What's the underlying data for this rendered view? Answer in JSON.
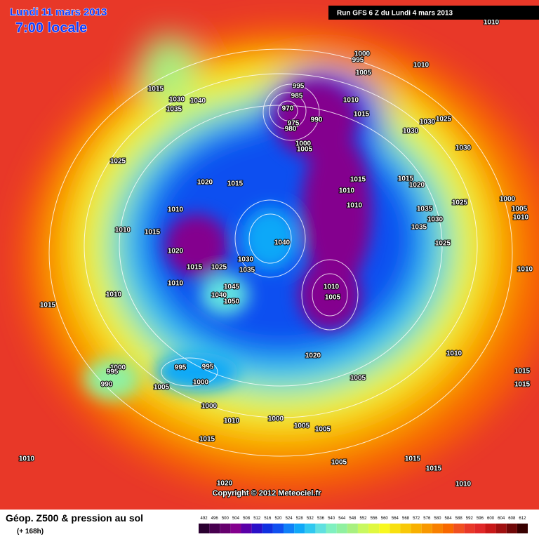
{
  "header": {
    "date": "Lundi 11 mars 2013",
    "time": "7:00 locale",
    "run": "Run GFS 6 Z du Lundi 4 mars 2013",
    "copyright": "Copyright © 2012 Meteociel.fr"
  },
  "map": {
    "isobar_labels": [
      "1010",
      "1000",
      "995",
      "1005",
      "1010",
      "1015",
      "1030",
      "1040",
      "1035",
      "995",
      "985",
      "970",
      "975",
      "980",
      "990",
      "1010",
      "1015",
      "1000",
      "1005",
      "1030",
      "1030",
      "1025",
      "1030",
      "1025",
      "1020",
      "1015",
      "1015",
      "1015",
      "1020",
      "1010",
      "1010",
      "1025",
      "1000",
      "1005",
      "1010",
      "1035",
      "1030",
      "1035",
      "1010",
      "1010",
      "1015",
      "1025",
      "1040",
      "1020",
      "1030",
      "1015",
      "1025",
      "1035",
      "1010",
      "1010",
      "1045",
      "1010",
      "1005",
      "1010",
      "1040",
      "1050",
      "1015",
      "1020",
      "1010",
      "1015",
      "1000",
      "995",
      "995",
      "995",
      "990",
      "1005",
      "1000",
      "1005",
      "1015",
      "1000",
      "1010",
      "1000",
      "1005",
      "1015",
      "1005",
      "1010",
      "1015",
      "1015",
      "1005",
      "1010",
      "1020"
    ]
  },
  "legend": {
    "title": "Géop. Z500 & pression au sol",
    "subtitle": "(+ 168h)",
    "ticks": [
      492,
      496,
      500,
      504,
      508,
      512,
      516,
      520,
      524,
      528,
      532,
      536,
      540,
      544,
      548,
      552,
      556,
      560,
      564,
      568,
      572,
      576,
      580,
      584,
      588,
      592,
      596,
      600,
      604,
      608,
      612
    ],
    "colors": [
      "#2a0030",
      "#48004f",
      "#66006e",
      "#84008e",
      "#5a00a8",
      "#2a10c8",
      "#1030e0",
      "#1050f0",
      "#1080f8",
      "#10a8f8",
      "#30c8f0",
      "#60e0e0",
      "#80f0c0",
      "#90f0a0",
      "#a8f080",
      "#c8f860",
      "#e0f840",
      "#f8f820",
      "#f8e010",
      "#f8c808",
      "#f8b000",
      "#f89800",
      "#f88000",
      "#f86800",
      "#f05020",
      "#e83828",
      "#e02828",
      "#c81818",
      "#a01010",
      "#700808",
      "#380000"
    ]
  }
}
